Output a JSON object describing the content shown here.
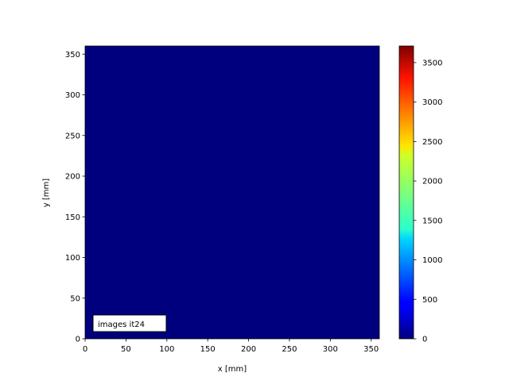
{
  "chart_data": {
    "type": "heatmap",
    "title": "",
    "xlabel": "x [mm]",
    "ylabel": "y [mm]",
    "xlim": [
      0,
      360
    ],
    "ylim": [
      0,
      360
    ],
    "xticks": [
      "0",
      "50",
      "100",
      "150",
      "200",
      "250",
      "300",
      "350"
    ],
    "yticks": [
      "0",
      "50",
      "100",
      "150",
      "200",
      "250",
      "300",
      "350"
    ],
    "values": [
      [
        0
      ]
    ],
    "colormap": "jet",
    "colorbar": {
      "range": [
        0,
        3710
      ],
      "ticks": [
        "0",
        "500",
        "1000",
        "1500",
        "2000",
        "2500",
        "3000",
        "3500"
      ]
    },
    "annotation": "images it24",
    "fill_color": "#00007f"
  }
}
